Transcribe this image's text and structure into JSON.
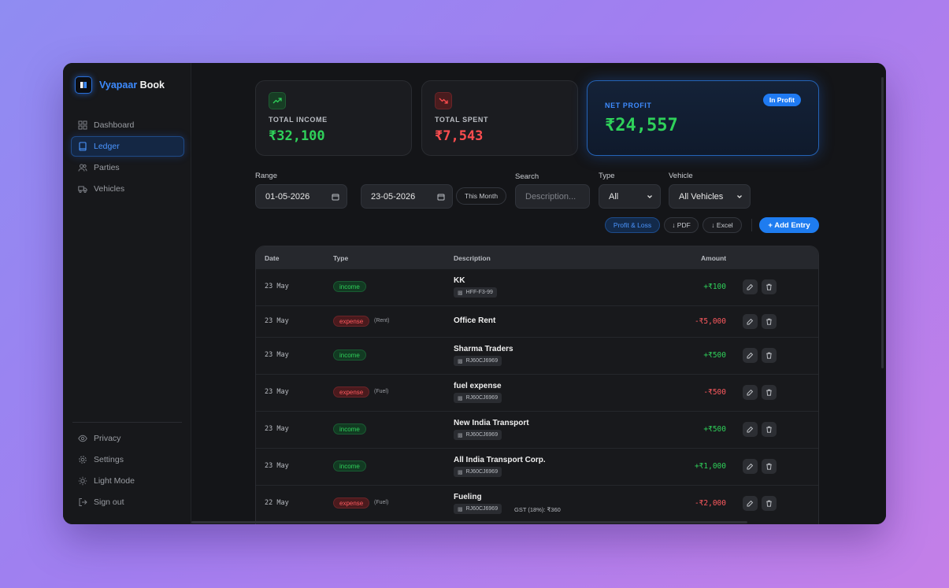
{
  "brand": {
    "part1": "Vyapaar",
    "part2": "Book"
  },
  "sidebar": {
    "items": [
      {
        "label": "Dashboard",
        "icon": "grid-icon"
      },
      {
        "label": "Ledger",
        "icon": "book-icon",
        "active": true
      },
      {
        "label": "Parties",
        "icon": "users-icon"
      },
      {
        "label": "Vehicles",
        "icon": "truck-icon"
      }
    ],
    "bottom": [
      {
        "label": "Privacy",
        "icon": "eye-icon"
      },
      {
        "label": "Settings",
        "icon": "gear-icon"
      },
      {
        "label": "Light Mode",
        "icon": "sun-icon"
      },
      {
        "label": "Sign out",
        "icon": "logout-icon"
      }
    ]
  },
  "cards": {
    "income": {
      "label": "TOTAL INCOME",
      "value": "₹32,100",
      "color": "#2fd15a"
    },
    "spent": {
      "label": "TOTAL SPENT",
      "value": "₹7,543",
      "color": "#ff4d4f"
    },
    "net": {
      "label": "NET PROFIT",
      "value": "₹24,557",
      "badge": "In Profit"
    }
  },
  "filters": {
    "range_label": "Range",
    "from": "01-05-2026",
    "to_label": "to",
    "to": "23-05-2026",
    "this_month": "This Month",
    "search_label": "Search",
    "search_placeholder": "Description...",
    "type_label": "Type",
    "type_value": "All",
    "vehicle_label": "Vehicle",
    "vehicle_value": "All Vehicles"
  },
  "actions": {
    "pl": "Profit & Loss",
    "pdf": "↓ PDF",
    "excel": "↓ Excel",
    "add": "+ Add Entry"
  },
  "table": {
    "headers": {
      "date": "Date",
      "type": "Type",
      "description": "Description",
      "amount": "Amount"
    },
    "rows": [
      {
        "date": "23 May",
        "type": "income",
        "category": "",
        "desc": "KK",
        "vehicle": "HFF-F3-99",
        "gst": "",
        "amount": "+₹100"
      },
      {
        "date": "23 May",
        "type": "expense",
        "category": "(Rent)",
        "desc": "Office Rent",
        "vehicle": "",
        "gst": "",
        "amount": "-₹5,000"
      },
      {
        "date": "23 May",
        "type": "income",
        "category": "",
        "desc": "Sharma Traders",
        "vehicle": "RJ60CJ6969",
        "gst": "",
        "amount": "+₹500"
      },
      {
        "date": "23 May",
        "type": "expense",
        "category": "(Fuel)",
        "desc": "fuel expense",
        "vehicle": "RJ60CJ6969",
        "gst": "",
        "amount": "-₹500"
      },
      {
        "date": "23 May",
        "type": "income",
        "category": "",
        "desc": "New India Transport",
        "vehicle": "RJ60CJ6969",
        "gst": "",
        "amount": "+₹500"
      },
      {
        "date": "23 May",
        "type": "income",
        "category": "",
        "desc": "All India Transport Corp.",
        "vehicle": "RJ60CJ6969",
        "gst": "",
        "amount": "+₹1,000"
      },
      {
        "date": "22 May",
        "type": "expense",
        "category": "(Fuel)",
        "desc": "Fueling",
        "vehicle": "RJ60CJ6969",
        "gst": "GST (18%): ₹360",
        "amount": "-₹2,000"
      }
    ]
  }
}
